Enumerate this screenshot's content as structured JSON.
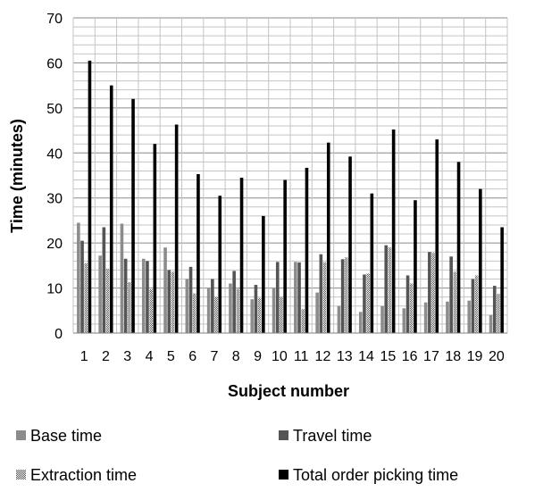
{
  "chart_data": {
    "type": "bar",
    "xlabel": "Subject number",
    "ylabel": "Time (minutes)",
    "ylim": [
      0,
      70
    ],
    "yticks": [
      0,
      10,
      20,
      30,
      40,
      50,
      60,
      70
    ],
    "grid": true,
    "legend_position": "bottom",
    "categories": [
      "1",
      "2",
      "3",
      "4",
      "5",
      "6",
      "7",
      "8",
      "9",
      "10",
      "11",
      "12",
      "13",
      "14",
      "15",
      "16",
      "17",
      "18",
      "19",
      "20"
    ],
    "series": [
      {
        "name": "Base time",
        "color": "#8c8c8c",
        "pattern": "solid",
        "values": [
          24.5,
          17.2,
          24.3,
          16.5,
          19.0,
          12.0,
          10.0,
          11.0,
          7.5,
          10.0,
          15.8,
          9.0,
          6.0,
          4.7,
          6.0,
          5.5,
          6.8,
          7.0,
          7.2,
          4.0
        ]
      },
      {
        "name": "Travel time",
        "color": "#555555",
        "pattern": "solid",
        "values": [
          20.5,
          23.5,
          16.5,
          16.0,
          14.0,
          14.7,
          12.0,
          13.8,
          10.7,
          15.8,
          15.7,
          17.5,
          16.4,
          13.0,
          19.5,
          12.8,
          18.0,
          17.0,
          12.0,
          10.5
        ]
      },
      {
        "name": "Extraction time",
        "color": "#888888",
        "pattern": "checker",
        "values": [
          15.5,
          14.3,
          11.3,
          9.7,
          13.6,
          8.8,
          8.0,
          9.8,
          7.8,
          8.0,
          5.3,
          15.7,
          16.8,
          13.2,
          19.0,
          11.0,
          17.8,
          13.6,
          12.8,
          8.7
        ]
      },
      {
        "name": "Total order picking time",
        "color": "#000000",
        "pattern": "solid",
        "values": [
          60.5,
          55.0,
          52.0,
          42.0,
          46.3,
          35.3,
          30.5,
          34.5,
          26.0,
          34.0,
          36.7,
          42.3,
          39.2,
          31.0,
          45.2,
          29.5,
          43.0,
          38.0,
          32.0,
          23.5
        ]
      }
    ]
  }
}
